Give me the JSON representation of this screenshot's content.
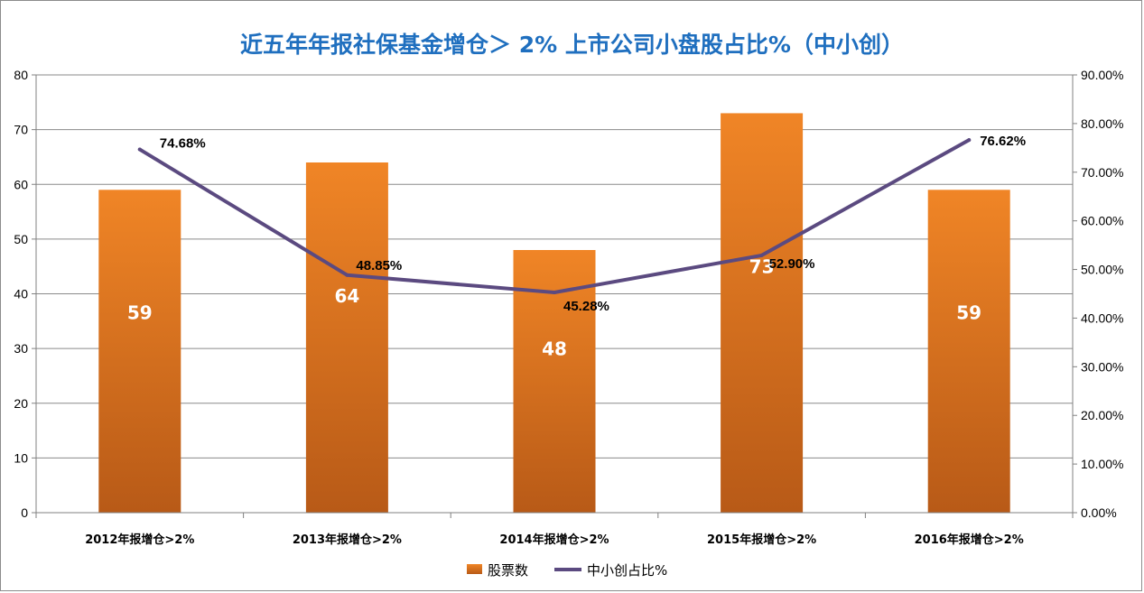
{
  "chart_data": {
    "type": "bar",
    "title": "近五年年报社保基金增仓＞ 2% 上市公司小盘股占比%（中小创）",
    "categories": [
      "2012年报增仓>2%",
      "2013年报增仓>2%",
      "2014年报增仓>2%",
      "2015年报增仓>2%",
      "2016年报增仓>2%"
    ],
    "series": [
      {
        "name": "股票数",
        "type": "bar",
        "axis": "left",
        "values": [
          59,
          64,
          48,
          73,
          59
        ],
        "labels": [
          "59",
          "64",
          "48",
          "73",
          "59"
        ],
        "color": "#e8782a"
      },
      {
        "name": "中小创占比%",
        "type": "line",
        "axis": "right",
        "values": [
          74.68,
          48.85,
          45.28,
          52.9,
          76.62
        ],
        "labels": [
          "74.68%",
          "48.85%",
          "45.28%",
          "52.90%",
          "76.62%"
        ],
        "color": "#5b4a80"
      }
    ],
    "ylim_left": [
      0,
      80
    ],
    "yticks_left": [
      "0",
      "10",
      "20",
      "30",
      "40",
      "50",
      "60",
      "70",
      "80"
    ],
    "ylim_right": [
      0,
      90
    ],
    "yticks_right": [
      "0.00%",
      "10.00%",
      "20.00%",
      "30.00%",
      "40.00%",
      "50.00%",
      "60.00%",
      "70.00%",
      "80.00%",
      "90.00%"
    ],
    "grid": true,
    "legend_position": "bottom"
  }
}
